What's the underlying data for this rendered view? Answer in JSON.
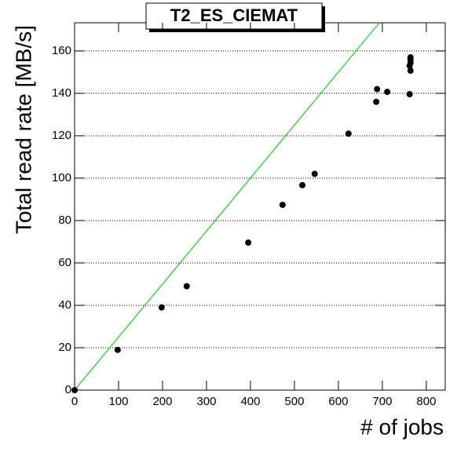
{
  "chart_data": {
    "type": "scatter",
    "title": "T2_ES_CIEMAT",
    "x_label": "# of jobs",
    "y_label": "Total read rate [MB/s]",
    "x": [
      0,
      98,
      198,
      255,
      395,
      473,
      518,
      546,
      623,
      686,
      688,
      711,
      762,
      764,
      762,
      764,
      764,
      764
    ],
    "values": [
      0,
      19,
      39,
      49,
      69.6,
      87.4,
      96.7,
      102,
      121,
      136,
      142,
      140.7,
      139.6,
      150.7,
      153,
      154.4,
      156,
      157
    ],
    "color": "#000000",
    "reference_line": {
      "x": [
        0,
        692
      ],
      "values": [
        0,
        173
      ],
      "color": "#4ccc4c"
    },
    "xlim": [
      0,
      843
    ],
    "ylim": [
      0,
      173.3
    ],
    "xticks": [
      0,
      100,
      200,
      300,
      400,
      500,
      600,
      700,
      800
    ],
    "yticks": [
      0,
      20,
      40,
      60,
      80,
      100,
      120,
      140,
      160
    ],
    "grid": true
  }
}
